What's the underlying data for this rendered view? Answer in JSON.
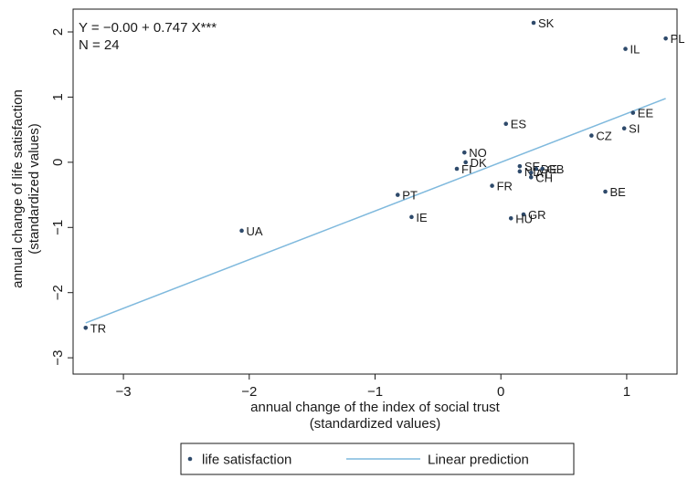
{
  "chart_data": {
    "type": "scatter",
    "xlabel": [
      "annual change of the index of social trust",
      "(standardized values)"
    ],
    "ylabel": [
      "annual change of life satisfaction",
      "(standardized values)"
    ],
    "xlim": [
      -3.4,
      1.4
    ],
    "ylim": [
      -3.25,
      2.35
    ],
    "xticks": [
      -3,
      -2,
      -1,
      0,
      1
    ],
    "yticks": [
      -3,
      -2,
      -1,
      0,
      1,
      2
    ],
    "tick_labels_x": [
      "−3",
      "−2",
      "−1",
      "0",
      "1"
    ],
    "tick_labels_y": [
      "−3",
      "−2",
      "−1",
      "0",
      "1",
      "2"
    ],
    "grid": false,
    "annotation": [
      "Y = −0.00 + 0.747 X***",
      "N = 24"
    ],
    "legend_position": "bottom",
    "series": [
      {
        "name": "life satisfaction",
        "kind": "scatter",
        "color": "#2e4a6b",
        "points": [
          {
            "label": "SK",
            "x": 0.26,
            "y": 2.14
          },
          {
            "label": "PL",
            "x": 1.31,
            "y": 1.9
          },
          {
            "label": "IL",
            "x": 0.99,
            "y": 1.74
          },
          {
            "label": "EE",
            "x": 1.05,
            "y": 0.76
          },
          {
            "label": "ES",
            "x": 0.04,
            "y": 0.59
          },
          {
            "label": "SI",
            "x": 0.98,
            "y": 0.52
          },
          {
            "label": "CZ",
            "x": 0.72,
            "y": 0.41
          },
          {
            "label": "NO",
            "x": -0.29,
            "y": 0.15
          },
          {
            "label": "DK",
            "x": -0.28,
            "y": 0.0
          },
          {
            "label": "SE",
            "x": 0.15,
            "y": -0.06
          },
          {
            "label": "FI",
            "x": -0.35,
            "y": -0.1
          },
          {
            "label": "DE",
            "x": 0.28,
            "y": -0.1
          },
          {
            "label": "GB",
            "x": 0.33,
            "y": -0.1
          },
          {
            "label": "NL",
            "x": 0.15,
            "y": -0.14
          },
          {
            "label": "AT",
            "x": 0.24,
            "y": -0.16
          },
          {
            "label": "CH",
            "x": 0.24,
            "y": -0.23
          },
          {
            "label": "FR",
            "x": -0.07,
            "y": -0.36
          },
          {
            "label": "BE",
            "x": 0.83,
            "y": -0.45
          },
          {
            "label": "PT",
            "x": -0.82,
            "y": -0.5
          },
          {
            "label": "GR",
            "x": 0.18,
            "y": -0.8
          },
          {
            "label": "IE",
            "x": -0.71,
            "y": -0.84
          },
          {
            "label": "HU",
            "x": 0.08,
            "y": -0.86
          },
          {
            "label": "UA",
            "x": -2.06,
            "y": -1.05
          },
          {
            "label": "TR",
            "x": -3.3,
            "y": -2.54
          }
        ]
      },
      {
        "name": "Linear prediction",
        "kind": "line",
        "color": "#7fb9dd",
        "intercept": 0.0,
        "slope": 0.747,
        "x_range": [
          -3.3,
          1.31
        ]
      }
    ]
  }
}
